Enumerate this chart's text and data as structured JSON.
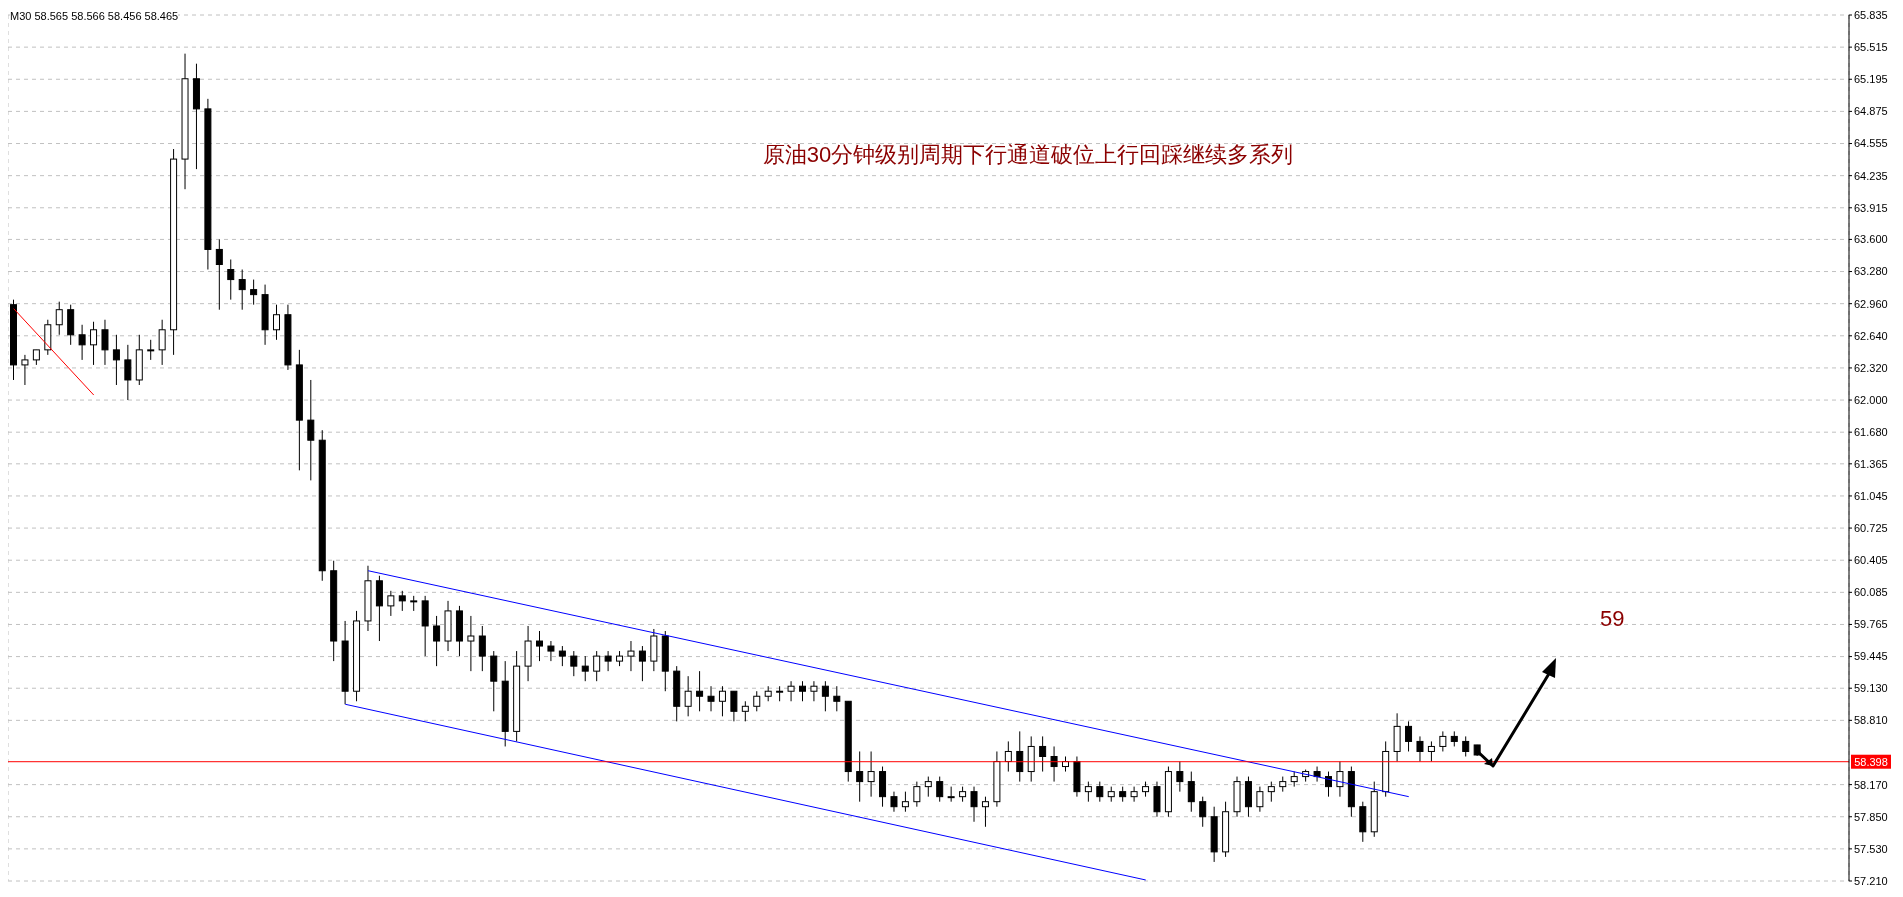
{
  "chart_data": {
    "type": "candlestick",
    "title": "原油30分钟级别周期下行通道破位上行回踩继续多系列",
    "subtitle": "M30  58.565 58.566 58.456 58.465",
    "annotations": [
      "59"
    ],
    "color": "#000000",
    "grid": true,
    "tick_labels": "y",
    "ylim": [
      57.21,
      65.835
    ],
    "yticks": [
      {
        "value": 57.21,
        "label": "57.210"
      },
      {
        "value": 57.53,
        "label": "57.530"
      },
      {
        "value": 57.85,
        "label": "57.850"
      },
      {
        "value": 58.17,
        "label": "58.170"
      },
      {
        "value": 58.81,
        "label": "58.810"
      },
      {
        "value": 59.13,
        "label": "59.130"
      },
      {
        "value": 59.445,
        "label": "59.445"
      },
      {
        "value": 59.765,
        "label": "59.765"
      },
      {
        "value": 60.085,
        "label": "60.085"
      },
      {
        "value": 60.405,
        "label": "60.405"
      },
      {
        "value": 60.725,
        "label": "60.725"
      },
      {
        "value": 61.045,
        "label": "61.045"
      },
      {
        "value": 61.365,
        "label": "61.365"
      },
      {
        "value": 61.68,
        "label": "61.680"
      },
      {
        "value": 62.0,
        "label": "62.000"
      },
      {
        "value": 62.32,
        "label": "62.320"
      },
      {
        "value": 62.64,
        "label": "62.640"
      },
      {
        "value": 62.96,
        "label": "62.960"
      },
      {
        "value": 63.28,
        "label": "63.280"
      },
      {
        "value": 63.6,
        "label": "63.600"
      },
      {
        "value": 63.915,
        "label": "63.915"
      },
      {
        "value": 64.235,
        "label": "64.235"
      },
      {
        "value": 64.555,
        "label": "64.555"
      },
      {
        "value": 64.875,
        "label": "64.875"
      },
      {
        "value": 65.195,
        "label": "65.195"
      },
      {
        "value": 65.515,
        "label": "65.515"
      },
      {
        "value": 65.835,
        "label": "65.835"
      }
    ],
    "categories": [
      null,
      null,
      null,
      null,
      null,
      null,
      null,
      null,
      null,
      null,
      null,
      null,
      null,
      null,
      null,
      null,
      null,
      null,
      null,
      null,
      null,
      null,
      null,
      null,
      null,
      null,
      null,
      null,
      null,
      null,
      null,
      null,
      null,
      null,
      null,
      null,
      null,
      null,
      null,
      null,
      null,
      null,
      null,
      null,
      null,
      null,
      null,
      null,
      null,
      null,
      null,
      null,
      null,
      null,
      null,
      null,
      null,
      null,
      null,
      null,
      null,
      null,
      null,
      null,
      null,
      null,
      null,
      null,
      null,
      null,
      null,
      null,
      null,
      null,
      null,
      null,
      null,
      null,
      null,
      null,
      null,
      null,
      null,
      null,
      null,
      null,
      null,
      null,
      null,
      null,
      null,
      null,
      null,
      null,
      null,
      null,
      null,
      null,
      null,
      null,
      null,
      null,
      null,
      null,
      null,
      null,
      null,
      null,
      null,
      null,
      null,
      null,
      null,
      null,
      null,
      null,
      null,
      null,
      null,
      null,
      null,
      null,
      null,
      null,
      null,
      null,
      null,
      null,
      null,
      null,
      null,
      null,
      null,
      null,
      null,
      null,
      null,
      null,
      null,
      null,
      null,
      null,
      null,
      null,
      null,
      null,
      null,
      null,
      null,
      null,
      null,
      null,
      null,
      null,
      null,
      null,
      null,
      null,
      null,
      null,
      null
    ],
    "ohlc": [
      [
        62.95,
        63.0,
        62.2,
        62.35
      ],
      [
        62.35,
        62.45,
        62.15,
        62.4
      ],
      [
        62.4,
        62.5,
        62.35,
        62.5
      ],
      [
        62.5,
        62.8,
        62.45,
        62.75
      ],
      [
        62.75,
        62.98,
        62.65,
        62.9
      ],
      [
        62.9,
        62.95,
        62.55,
        62.65
      ],
      [
        62.65,
        62.75,
        62.4,
        62.55
      ],
      [
        62.55,
        62.78,
        62.35,
        62.7
      ],
      [
        62.7,
        62.8,
        62.35,
        62.5
      ],
      [
        62.5,
        62.65,
        62.15,
        62.4
      ],
      [
        62.4,
        62.55,
        62.0,
        62.2
      ],
      [
        62.2,
        62.65,
        62.15,
        62.5
      ],
      [
        62.5,
        62.6,
        62.4,
        62.5
      ],
      [
        62.5,
        62.8,
        62.35,
        62.7
      ],
      [
        62.7,
        64.5,
        62.45,
        64.4
      ],
      [
        64.4,
        65.45,
        64.1,
        65.2
      ],
      [
        65.2,
        65.35,
        64.3,
        64.9
      ],
      [
        64.9,
        65.0,
        63.3,
        63.5
      ],
      [
        63.5,
        63.6,
        62.9,
        63.35
      ],
      [
        63.3,
        63.4,
        63.0,
        63.2
      ],
      [
        63.2,
        63.3,
        62.9,
        63.1
      ],
      [
        63.1,
        63.2,
        62.95,
        63.05
      ],
      [
        63.05,
        63.15,
        62.55,
        62.7
      ],
      [
        62.7,
        62.95,
        62.6,
        62.85
      ],
      [
        62.85,
        62.95,
        62.3,
        62.35
      ],
      [
        62.35,
        62.5,
        61.3,
        61.8
      ],
      [
        61.8,
        62.2,
        61.2,
        61.6
      ],
      [
        61.6,
        61.7,
        60.2,
        60.3
      ],
      [
        60.3,
        60.4,
        59.4,
        59.6
      ],
      [
        59.6,
        59.8,
        58.97,
        59.1
      ],
      [
        59.1,
        59.9,
        59.0,
        59.8
      ],
      [
        59.8,
        60.35,
        59.7,
        60.2
      ],
      [
        60.2,
        60.25,
        59.6,
        59.95
      ],
      [
        59.95,
        60.1,
        59.85,
        60.05
      ],
      [
        60.05,
        60.1,
        59.9,
        60.0
      ],
      [
        60.0,
        60.05,
        59.9,
        60.0
      ],
      [
        60.0,
        60.05,
        59.45,
        59.75
      ],
      [
        59.75,
        59.85,
        59.35,
        59.6
      ],
      [
        59.6,
        60.0,
        59.5,
        59.9
      ],
      [
        59.9,
        59.95,
        59.45,
        59.6
      ],
      [
        59.6,
        59.85,
        59.3,
        59.65
      ],
      [
        59.65,
        59.75,
        59.3,
        59.45
      ],
      [
        59.45,
        59.5,
        58.9,
        59.2
      ],
      [
        59.2,
        59.4,
        58.55,
        58.7
      ],
      [
        58.7,
        59.5,
        58.6,
        59.35
      ],
      [
        59.35,
        59.75,
        59.2,
        59.6
      ],
      [
        59.6,
        59.7,
        59.4,
        59.55
      ],
      [
        59.55,
        59.6,
        59.4,
        59.5
      ],
      [
        59.5,
        59.55,
        59.35,
        59.45
      ],
      [
        59.45,
        59.5,
        59.25,
        59.35
      ],
      [
        59.35,
        59.45,
        59.2,
        59.3
      ],
      [
        59.3,
        59.5,
        59.2,
        59.45
      ],
      [
        59.45,
        59.5,
        59.3,
        59.4
      ],
      [
        59.4,
        59.5,
        59.35,
        59.45
      ],
      [
        59.45,
        59.6,
        59.3,
        59.5
      ],
      [
        59.5,
        59.55,
        59.2,
        59.4
      ],
      [
        59.4,
        59.72,
        59.3,
        59.65
      ],
      [
        59.65,
        59.7,
        59.1,
        59.3
      ],
      [
        59.3,
        59.35,
        58.8,
        58.95
      ],
      [
        58.95,
        59.25,
        58.85,
        59.1
      ],
      [
        59.1,
        59.3,
        58.9,
        59.05
      ],
      [
        59.05,
        59.15,
        58.9,
        59.0
      ],
      [
        59.0,
        59.15,
        58.85,
        59.1
      ],
      [
        59.1,
        59.1,
        58.8,
        58.9
      ],
      [
        58.9,
        59.0,
        58.8,
        58.95
      ],
      [
        58.95,
        59.1,
        58.9,
        59.05
      ],
      [
        59.05,
        59.15,
        59.0,
        59.1
      ],
      [
        59.1,
        59.15,
        59.0,
        59.1
      ],
      [
        59.1,
        59.2,
        59.0,
        59.15
      ],
      [
        59.15,
        59.2,
        59.0,
        59.1
      ],
      [
        59.1,
        59.2,
        59.0,
        59.15
      ],
      [
        59.15,
        59.2,
        58.9,
        59.05
      ],
      [
        59.05,
        59.15,
        58.9,
        59.0
      ],
      [
        59.0,
        59.0,
        58.2,
        58.3
      ],
      [
        58.3,
        58.5,
        58.0,
        58.2
      ],
      [
        58.2,
        58.5,
        58.05,
        58.3
      ],
      [
        58.3,
        58.35,
        57.95,
        58.05
      ],
      [
        58.05,
        58.1,
        57.9,
        57.95
      ],
      [
        57.95,
        58.1,
        57.9,
        58.0
      ],
      [
        58.0,
        58.2,
        57.95,
        58.15
      ],
      [
        58.15,
        58.25,
        58.05,
        58.2
      ],
      [
        58.2,
        58.25,
        58.0,
        58.05
      ],
      [
        58.05,
        58.15,
        58.0,
        58.05
      ],
      [
        58.05,
        58.15,
        58.0,
        58.1
      ],
      [
        58.1,
        58.15,
        57.8,
        57.95
      ],
      [
        57.95,
        58.05,
        57.75,
        58.0
      ],
      [
        58.0,
        58.5,
        57.95,
        58.4
      ],
      [
        58.4,
        58.6,
        58.3,
        58.5
      ],
      [
        58.5,
        58.7,
        58.2,
        58.3
      ],
      [
        58.3,
        58.65,
        58.2,
        58.55
      ],
      [
        58.55,
        58.65,
        58.3,
        58.45
      ],
      [
        58.45,
        58.55,
        58.2,
        58.35
      ],
      [
        58.35,
        58.45,
        58.3,
        58.4
      ],
      [
        58.4,
        58.45,
        58.05,
        58.1
      ],
      [
        58.1,
        58.2,
        58.0,
        58.15
      ],
      [
        58.15,
        58.2,
        58.0,
        58.05
      ],
      [
        58.05,
        58.15,
        58.0,
        58.1
      ],
      [
        58.1,
        58.15,
        58.0,
        58.05
      ],
      [
        58.05,
        58.15,
        58.0,
        58.1
      ],
      [
        58.1,
        58.2,
        58.05,
        58.15
      ],
      [
        58.15,
        58.2,
        57.85,
        57.9
      ],
      [
        57.9,
        58.35,
        57.85,
        58.3
      ],
      [
        58.3,
        58.4,
        58.1,
        58.2
      ],
      [
        58.2,
        58.3,
        57.9,
        58.0
      ],
      [
        58.0,
        58.05,
        57.75,
        57.85
      ],
      [
        57.85,
        57.95,
        57.4,
        57.5
      ],
      [
        57.5,
        58.0,
        57.45,
        57.9
      ],
      [
        57.9,
        58.25,
        57.85,
        58.2
      ],
      [
        58.2,
        58.25,
        57.85,
        57.95
      ],
      [
        57.95,
        58.15,
        57.9,
        58.1
      ],
      [
        58.1,
        58.2,
        58.0,
        58.15
      ],
      [
        58.15,
        58.25,
        58.1,
        58.2
      ],
      [
        58.2,
        58.3,
        58.15,
        58.25
      ],
      [
        58.25,
        58.32,
        58.2,
        58.3
      ],
      [
        58.3,
        58.35,
        58.2,
        58.25
      ],
      [
        58.25,
        58.3,
        58.05,
        58.15
      ],
      [
        58.15,
        58.4,
        58.05,
        58.3
      ],
      [
        58.3,
        58.35,
        57.85,
        57.95
      ],
      [
        57.95,
        58.0,
        57.6,
        57.7
      ],
      [
        57.7,
        58.2,
        57.65,
        58.1
      ],
      [
        58.1,
        58.6,
        58.05,
        58.5
      ],
      [
        58.5,
        58.88,
        58.4,
        58.75
      ],
      [
        58.75,
        58.8,
        58.5,
        58.6
      ],
      [
        58.6,
        58.65,
        58.4,
        58.5
      ],
      [
        58.5,
        58.6,
        58.4,
        58.55
      ],
      [
        58.55,
        58.7,
        58.5,
        58.65
      ],
      [
        58.65,
        58.7,
        58.55,
        58.6
      ],
      [
        58.6,
        58.65,
        58.45,
        58.5
      ],
      [
        58.565,
        58.566,
        58.456,
        58.465
      ],
      null,
      null,
      null,
      null,
      null,
      null,
      null,
      null,
      null,
      null,
      null,
      null,
      null,
      null,
      null,
      null,
      null,
      null,
      null,
      null,
      null,
      null,
      null,
      null,
      null,
      null,
      null,
      null,
      null,
      null,
      null,
      null
    ],
    "series": [
      {
        "type": "line",
        "color": "#0000ff",
        "values": [
          null,
          null,
          null,
          null,
          null,
          null,
          null,
          null,
          null,
          null,
          null,
          null,
          null,
          null,
          null,
          null,
          null,
          null,
          null,
          null,
          null,
          null,
          null,
          null,
          null,
          null,
          null,
          null,
          null,
          null,
          null,
          60.3,
          null,
          null,
          null,
          null,
          null,
          null,
          null,
          null,
          null,
          null,
          null,
          null,
          null,
          null,
          null,
          null,
          null,
          null,
          null,
          null,
          null,
          null,
          null,
          null,
          null,
          null,
          null,
          null,
          null,
          null,
          null,
          null,
          null,
          null,
          null,
          null,
          null,
          null,
          null,
          null,
          null,
          null,
          null,
          null,
          null,
          null,
          null,
          null,
          null,
          null,
          null,
          null,
          null,
          null,
          null,
          null,
          null,
          null,
          null,
          null,
          null,
          null,
          null,
          null,
          null,
          null,
          null,
          null,
          null,
          null,
          null,
          null,
          null,
          null,
          null,
          null,
          null,
          null,
          null,
          null,
          null,
          null,
          null,
          null,
          null,
          null,
          null,
          null,
          null,
          null,
          58.05,
          null,
          null,
          null,
          null,
          null,
          null,
          null,
          null,
          null,
          null,
          null,
          null,
          null,
          null,
          null,
          null,
          null,
          null,
          null,
          null,
          null,
          null,
          null,
          null,
          null,
          null,
          null,
          null,
          null,
          null,
          null,
          null,
          null,
          null,
          null,
          null,
          null,
          null
        ]
      },
      {
        "type": "line",
        "color": "#0000ff",
        "values": [
          null,
          null,
          null,
          null,
          null,
          null,
          null,
          null,
          null,
          null,
          null,
          null,
          null,
          null,
          null,
          null,
          null,
          null,
          null,
          null,
          null,
          null,
          null,
          null,
          null,
          null,
          null,
          null,
          null,
          58.97,
          null,
          null,
          null,
          null,
          null,
          null,
          null,
          null,
          null,
          null,
          null,
          null,
          null,
          null,
          null,
          null,
          null,
          null,
          null,
          null,
          null,
          null,
          null,
          null,
          null,
          null,
          null,
          null,
          null,
          null,
          null,
          null,
          null,
          null,
          null,
          null,
          null,
          null,
          null,
          null,
          null,
          null,
          null,
          null,
          null,
          null,
          null,
          null,
          null,
          null,
          null,
          null,
          null,
          null,
          null,
          null,
          null,
          null,
          null,
          null,
          null,
          null,
          null,
          null,
          null,
          null,
          null,
          null,
          null,
          57.22,
          null,
          null,
          null,
          null,
          null,
          null,
          null,
          null,
          null,
          null,
          null,
          null,
          null,
          null,
          null,
          null,
          null,
          null,
          null,
          null,
          null,
          null,
          null,
          null,
          null,
          null,
          null,
          null,
          null,
          null,
          null,
          null,
          null,
          null,
          null,
          null,
          null,
          null,
          null,
          null,
          null,
          null,
          null,
          null,
          null,
          null,
          null,
          null,
          null,
          null,
          null,
          null,
          null,
          null,
          null,
          null,
          null,
          null,
          null,
          null,
          null
        ]
      },
      {
        "type": "line",
        "color": "#ff0000",
        "values": [
          62.91,
          null,
          null,
          null,
          null,
          null,
          null,
          62.05,
          null,
          null,
          null,
          null,
          null,
          null,
          null,
          null,
          null,
          null,
          null,
          null,
          null,
          null,
          null,
          null,
          null,
          null,
          null,
          null,
          null,
          null,
          null,
          null,
          null,
          null,
          null,
          null,
          null,
          null,
          null,
          null,
          null,
          null,
          null,
          null,
          null,
          null,
          null,
          null,
          null,
          null,
          null,
          null,
          null,
          null,
          null,
          null,
          null,
          null,
          null,
          null,
          null,
          null,
          null,
          null,
          null,
          null,
          null,
          null,
          null,
          null,
          null,
          null,
          null,
          null,
          null,
          null,
          null,
          null,
          null,
          null,
          null,
          null,
          null,
          null,
          null,
          null,
          null,
          null,
          null,
          null,
          null,
          null,
          null,
          null,
          null,
          null,
          null,
          null,
          null,
          null,
          null,
          null,
          null,
          null,
          null,
          null,
          null,
          null,
          null,
          null,
          null,
          null,
          null,
          null,
          null,
          null,
          null,
          null,
          null,
          null,
          null,
          null,
          null,
          null,
          null,
          null,
          null,
          null,
          null,
          null,
          null,
          null,
          null,
          null,
          null,
          null,
          null,
          null,
          null,
          null,
          null,
          null,
          null,
          null,
          null,
          null,
          null,
          null,
          null,
          null,
          null,
          null,
          null,
          null,
          null,
          null,
          null,
          null,
          null,
          null,
          null
        ]
      }
    ],
    "ref_lines": [
      {
        "axis": "y",
        "value": 58.398,
        "label": "58.398",
        "color": "#ff0000"
      }
    ]
  }
}
